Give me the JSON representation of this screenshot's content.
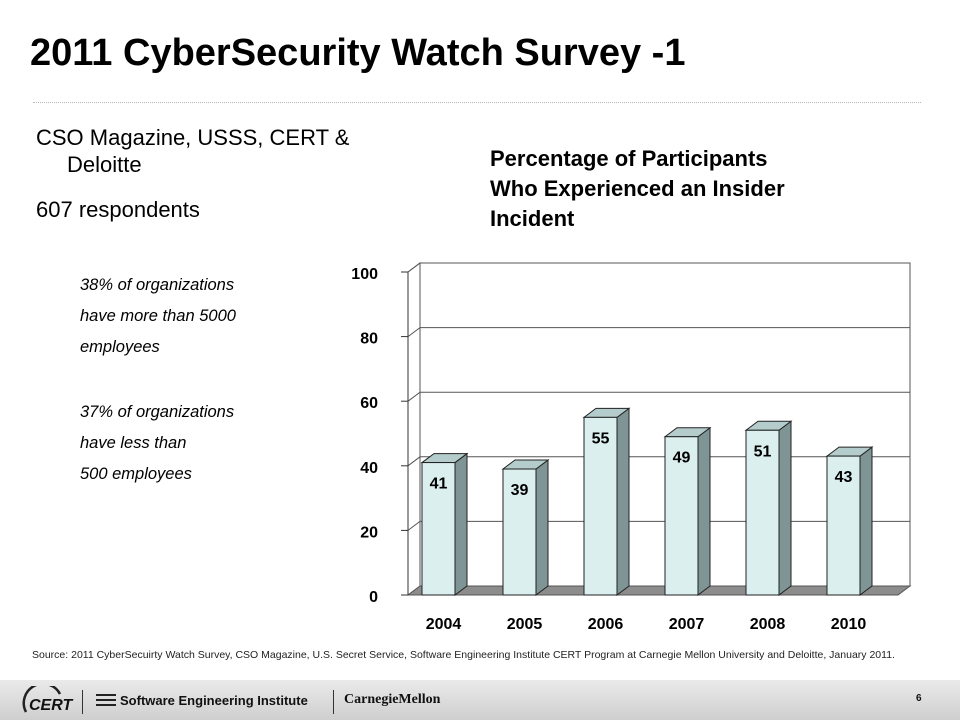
{
  "slide": {
    "title": "2011 CyberSecurity Watch Survey -1",
    "bullets": {
      "b1_line1": "CSO Magazine, USSS, CERT &",
      "b1_line2": "Deloitte",
      "b2": "607 respondents"
    },
    "stats": {
      "s1_l1": "38% of organizations",
      "s1_l2": "have more than 5000",
      "s1_l3": "employees",
      "s2_l1": "37% of organizations",
      "s2_l2": "have less than",
      "s2_l3": "500 employees"
    },
    "source": "Source: 2011 CyberSecuirty Watch Survey, CSO Magazine, U.S. Secret Service, Software Engineering Institute CERT Program at Carnegie Mellon University and Deloitte, January 2011.",
    "page_number": "6"
  },
  "footer": {
    "cert_label": "CERT",
    "sei_label": "Software Engineering Institute",
    "cmu_label": "CarnegieMellon"
  },
  "chart_data": {
    "type": "bar",
    "title_lines": [
      "Percentage of Participants",
      "Who Experienced an Insider",
      "Incident"
    ],
    "categories": [
      "2004",
      "2005",
      "2006",
      "2007",
      "2008",
      "2010"
    ],
    "values": [
      41,
      39,
      55,
      49,
      51,
      43
    ],
    "ylim": [
      0,
      100
    ],
    "yticks": [
      0,
      20,
      40,
      60,
      80,
      100
    ],
    "grid": true,
    "style": "3d",
    "colors": {
      "bar_front": "#dcefef",
      "bar_side": "#7f9595",
      "bar_top": "#b5cccc",
      "floor": "#8c8c8c"
    }
  }
}
